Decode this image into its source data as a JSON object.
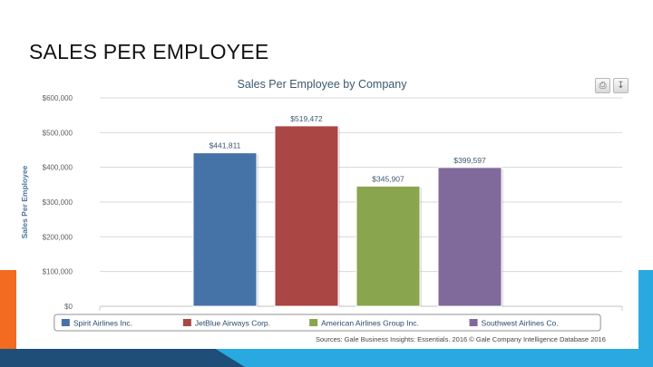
{
  "slide": {
    "title": "SALES PER EMPLOYEE"
  },
  "toolbar": {
    "print_icon": "print-icon",
    "download_icon": "download-icon"
  },
  "source": "Sources: Gale Business Insights: Essentials. 2016 © Gale Company Intelligence Database 2016",
  "chart_data": {
    "type": "bar",
    "title": "Sales Per Employee by Company",
    "xlabel": "",
    "ylabel": "Sales Per Employee",
    "ylim": [
      0,
      600000
    ],
    "yticks": [
      0,
      100000,
      200000,
      300000,
      400000,
      500000,
      600000
    ],
    "ytick_labels": [
      "$0",
      "$100,000",
      "$200,000",
      "$300,000",
      "$400,000",
      "$500,000",
      "$600,000"
    ],
    "grid": true,
    "legend_position": "bottom",
    "series": [
      {
        "name": "Spirit Airlines Inc.",
        "value": 441811,
        "label": "$441,811",
        "color": "#4572a7"
      },
      {
        "name": "JetBlue Airways Corp.",
        "value": 519472,
        "label": "$519,472",
        "color": "#aa4643"
      },
      {
        "name": "American Airlines Group Inc.",
        "value": 345907,
        "label": "$345,907",
        "color": "#89a54e"
      },
      {
        "name": "Southwest Airlines Co.",
        "value": 399597,
        "label": "$399,597",
        "color": "#80699b"
      }
    ]
  }
}
